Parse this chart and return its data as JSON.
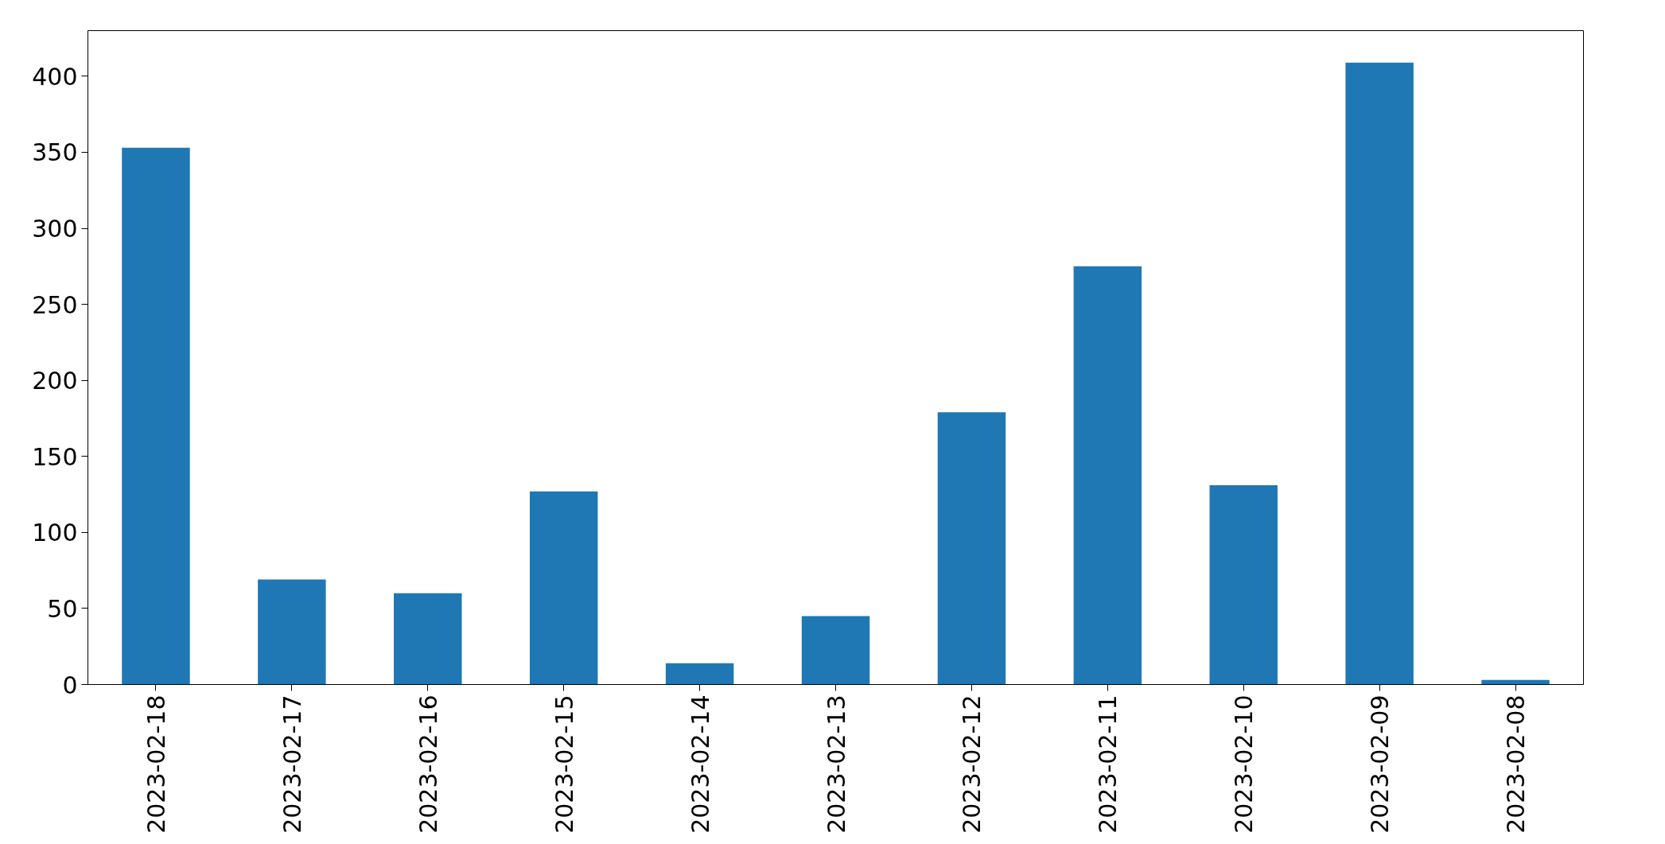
{
  "chart_data": {
    "type": "bar",
    "categories": [
      "2023-02-18",
      "2023-02-17",
      "2023-02-16",
      "2023-02-15",
      "2023-02-14",
      "2023-02-13",
      "2023-02-12",
      "2023-02-11",
      "2023-02-10",
      "2023-02-09",
      "2023-02-08"
    ],
    "values": [
      353,
      69,
      60,
      127,
      14,
      45,
      179,
      275,
      131,
      409,
      3
    ],
    "color": "#1f77b4",
    "ylim": [
      0,
      430
    ],
    "yticks": [
      0,
      50,
      100,
      150,
      200,
      250,
      300,
      350,
      400
    ]
  }
}
